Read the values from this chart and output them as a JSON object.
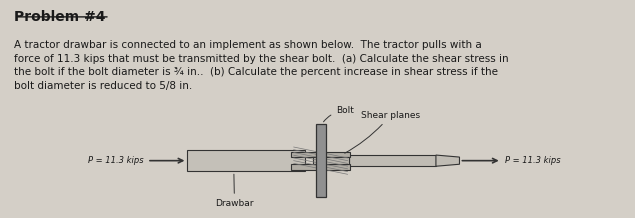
{
  "title": "Problem #4",
  "bg_color": "#d4cfc7",
  "text_color": "#1a1a1a",
  "paragraph": "A tractor drawbar is connected to an implement as shown below.  The tractor pulls with a\nforce of 11.3 kips that must be transmitted by the shear bolt.  (a) Calculate the shear stress in\nthe bolt if the bolt diameter is ¾ in..  (b) Calculate the percent increase in shear stress if the\nbolt diameter is reduced to 5/8 in.",
  "label_bolt": "Bolt",
  "label_shear": "Shear planes",
  "label_drawbar": "Drawbar",
  "label_p_left": "P = 11.3 kips",
  "label_p_right": "P = 11.3 kips"
}
